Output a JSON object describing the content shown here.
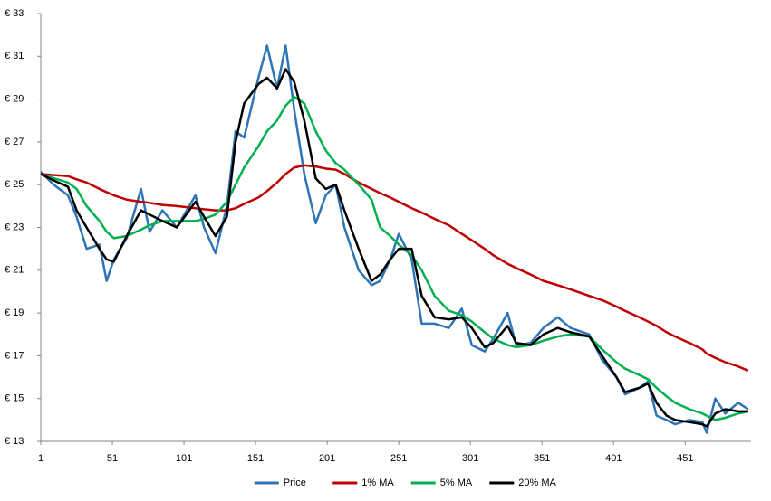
{
  "chart_data": {
    "type": "line",
    "x": [
      1,
      10,
      20,
      26,
      33,
      42,
      47,
      52,
      61,
      71,
      77,
      86,
      96,
      109,
      115,
      123,
      131,
      137,
      143,
      153,
      159,
      166,
      172,
      178,
      185,
      193,
      200,
      207,
      213,
      223,
      232,
      238,
      245,
      251,
      260,
      267,
      276,
      286,
      295,
      302,
      311,
      317,
      327,
      333,
      343,
      352,
      362,
      371,
      384,
      393,
      403,
      409,
      419,
      425,
      431,
      438,
      444,
      454,
      463,
      466,
      472,
      479,
      488,
      495
    ],
    "xlim": [
      1,
      497
    ],
    "xticks": [
      1,
      51,
      101,
      151,
      201,
      251,
      301,
      351,
      401,
      451
    ],
    "ylim": [
      13,
      33
    ],
    "yticks": [
      {
        "value": 13,
        "label": "€ 13"
      },
      {
        "value": 15,
        "label": "€ 15"
      },
      {
        "value": 17,
        "label": "€ 17"
      },
      {
        "value": 19,
        "label": "€ 19"
      },
      {
        "value": 21,
        "label": "€ 21"
      },
      {
        "value": 23,
        "label": "€ 23"
      },
      {
        "value": 25,
        "label": "€ 25"
      },
      {
        "value": 27,
        "label": "€ 27"
      },
      {
        "value": 29,
        "label": "€ 29"
      },
      {
        "value": 31,
        "label": "€ 31"
      },
      {
        "value": 33,
        "label": "€ 33"
      }
    ],
    "legend": "bottom",
    "series": [
      {
        "name": "Price",
        "color": "#2e75b6",
        "values": [
          25.6,
          25.0,
          24.5,
          23.5,
          22.0,
          22.2,
          20.5,
          21.5,
          22.5,
          24.8,
          22.8,
          23.8,
          23.0,
          24.5,
          23.0,
          21.8,
          24.0,
          27.5,
          27.2,
          30.0,
          31.5,
          29.5,
          31.5,
          28.5,
          25.5,
          23.2,
          24.5,
          25.0,
          23.0,
          21.0,
          20.3,
          20.5,
          21.5,
          22.7,
          21.5,
          18.5,
          18.5,
          18.3,
          19.2,
          17.5,
          17.2,
          17.8,
          19.0,
          17.5,
          17.6,
          18.3,
          18.8,
          18.3,
          18.0,
          16.8,
          16.0,
          15.2,
          15.5,
          15.8,
          14.2,
          14.0,
          13.8,
          14.0,
          13.9,
          13.4,
          15.0,
          14.3,
          14.8,
          14.5
        ]
      },
      {
        "name": "1% MA",
        "color": "#c00000",
        "values": [
          25.5,
          25.45,
          25.4,
          25.25,
          25.1,
          24.8,
          24.65,
          24.5,
          24.3,
          24.2,
          24.15,
          24.05,
          24.0,
          23.9,
          23.85,
          23.8,
          23.8,
          23.9,
          24.1,
          24.4,
          24.7,
          25.1,
          25.5,
          25.8,
          25.9,
          25.85,
          25.75,
          25.7,
          25.5,
          25.1,
          24.8,
          24.6,
          24.4,
          24.2,
          23.9,
          23.7,
          23.4,
          23.1,
          22.7,
          22.4,
          22.0,
          21.7,
          21.3,
          21.1,
          20.8,
          20.5,
          20.3,
          20.1,
          19.8,
          19.6,
          19.3,
          19.1,
          18.8,
          18.6,
          18.4,
          18.1,
          17.9,
          17.6,
          17.3,
          17.1,
          16.9,
          16.7,
          16.5,
          16.3
        ]
      },
      {
        "name": "5% MA",
        "color": "#00b050",
        "values": [
          25.5,
          25.3,
          25.1,
          24.8,
          24.0,
          23.3,
          22.8,
          22.5,
          22.6,
          22.9,
          23.1,
          23.3,
          23.3,
          23.3,
          23.4,
          23.6,
          24.2,
          25.0,
          25.8,
          26.8,
          27.5,
          28.0,
          28.7,
          29.1,
          28.8,
          27.5,
          26.6,
          26.0,
          25.7,
          25.0,
          24.3,
          23.0,
          22.6,
          22.2,
          21.7,
          21.0,
          19.8,
          19.1,
          18.9,
          18.6,
          18.1,
          17.8,
          17.5,
          17.4,
          17.5,
          17.7,
          17.9,
          18.0,
          17.9,
          17.3,
          16.7,
          16.4,
          16.1,
          15.9,
          15.5,
          15.1,
          14.8,
          14.5,
          14.3,
          14.2,
          14.0,
          14.1,
          14.3,
          14.4
        ]
      },
      {
        "name": "20% MA",
        "color": "#000000",
        "values": [
          25.5,
          25.2,
          24.9,
          23.8,
          23.0,
          22.0,
          21.5,
          21.4,
          22.6,
          23.8,
          23.6,
          23.3,
          23.0,
          24.2,
          23.5,
          22.6,
          23.5,
          27.0,
          28.8,
          29.7,
          30.0,
          29.5,
          30.4,
          29.8,
          28.0,
          25.3,
          24.8,
          25.0,
          23.8,
          22.0,
          20.5,
          20.8,
          21.5,
          22.0,
          22.0,
          19.8,
          18.8,
          18.7,
          18.8,
          18.3,
          17.4,
          17.6,
          18.4,
          17.6,
          17.5,
          18.0,
          18.3,
          18.1,
          17.9,
          17.0,
          16.0,
          15.3,
          15.5,
          15.7,
          14.8,
          14.2,
          14.0,
          13.9,
          13.8,
          13.7,
          14.3,
          14.5,
          14.4,
          14.4
        ]
      }
    ]
  }
}
